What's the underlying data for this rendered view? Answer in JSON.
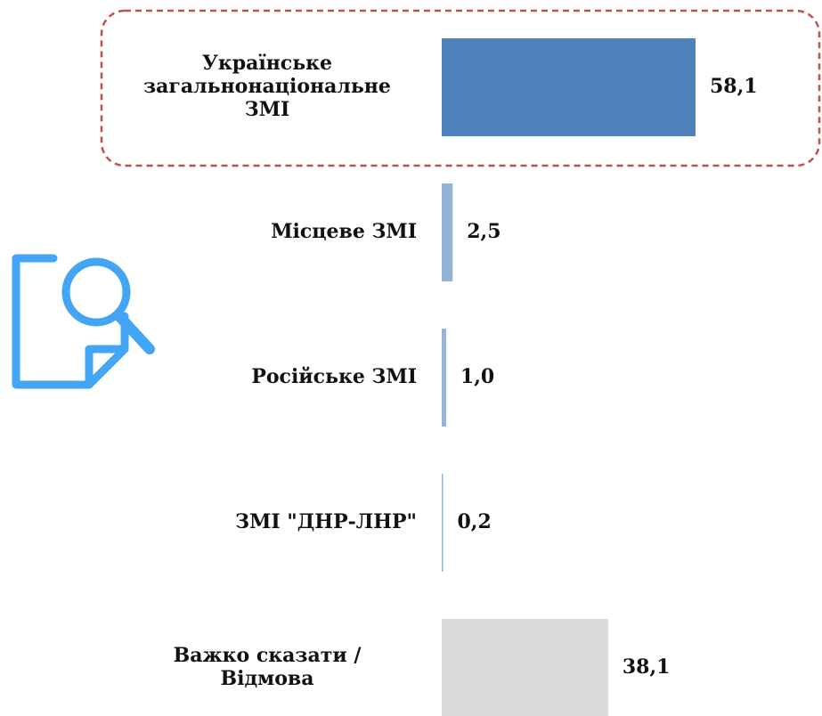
{
  "chart_data": {
    "type": "bar",
    "orientation": "horizontal",
    "categories": [
      "Українське\nзагальнонаціональне\nЗМІ",
      "Місцеве ЗМІ",
      "Російське ЗМІ",
      "ЗМІ \"ДНР-ЛНР\"",
      "Важко сказати /\nВідмова"
    ],
    "values": [
      58.1,
      2.5,
      1.0,
      0.2,
      38.1
    ],
    "value_labels": [
      "58,1",
      "2,5",
      "1,0",
      "0,2",
      "38,1"
    ],
    "colors": [
      "#4f81bd",
      "#95b3d7",
      "#95b3d7",
      "#95b3d7",
      "#d9d9d9"
    ]
  }
}
